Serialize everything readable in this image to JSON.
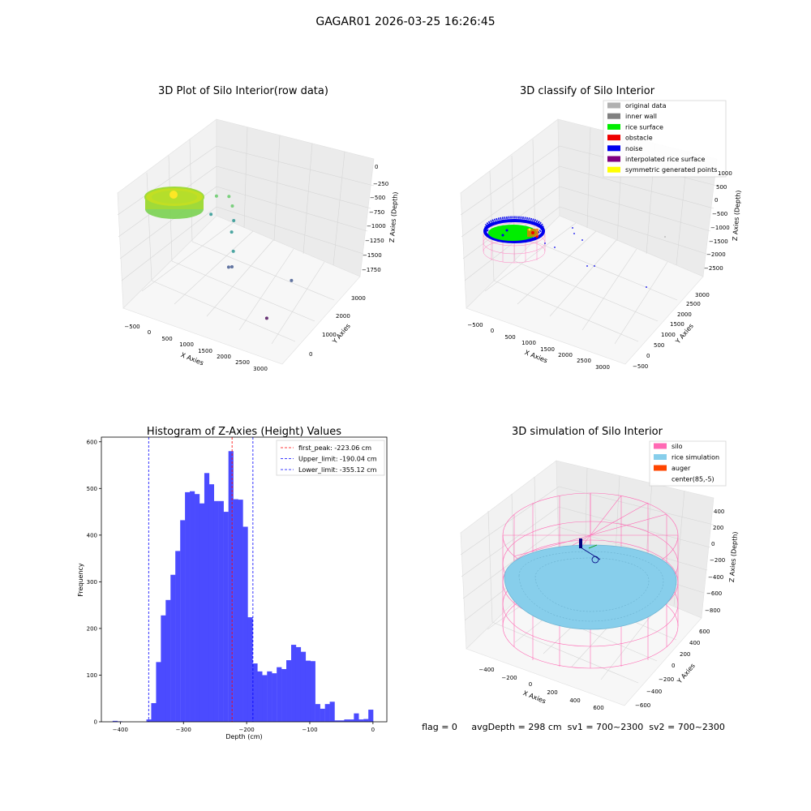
{
  "suptitle": "GAGAR01 2026-03-25 16:26:45",
  "status_line": "flag = 0     avgDepth = 298 cm  sv1 = 700~2300  sv2 = 700~2300",
  "chart_data": [
    {
      "type": "scatter3d",
      "title": "3D Plot of Silo Interior(row data)",
      "xlabel": "X Axies",
      "ylabel": "Y Axies",
      "zlabel": "Z Axies (Depth)",
      "x_ticks": [
        "−500",
        "0",
        "500",
        "1000",
        "1500",
        "2000",
        "2500",
        "3000"
      ],
      "y_ticks": [
        "0",
        "1000",
        "2000",
        "3000"
      ],
      "z_ticks": [
        "0",
        "−250",
        "−500",
        "−750",
        "−1000",
        "−1250",
        "−1500",
        "−1750"
      ],
      "xlim": [
        -600,
        3200
      ],
      "ylim": [
        -600,
        3400
      ],
      "zlim": [
        -1900,
        100
      ],
      "colormap": "viridis",
      "points": [
        {
          "x": 250,
          "y": 2200,
          "z": -800
        },
        {
          "x": 500,
          "y": 2300,
          "z": -780
        },
        {
          "x": 700,
          "y": 2050,
          "z": -800
        },
        {
          "x": 400,
          "y": 1600,
          "z": -850
        },
        {
          "x": 900,
          "y": 1700,
          "z": -870
        },
        {
          "x": 950,
          "y": 1500,
          "z": -980
        },
        {
          "x": 1100,
          "y": 1300,
          "z": -1200
        },
        {
          "x": 1050,
          "y": 1200,
          "z": -1450
        },
        {
          "x": 1150,
          "y": 1150,
          "z": -1400
        },
        {
          "x": 2500,
          "y": 1300,
          "z": -1350
        },
        {
          "x": 2350,
          "y": 400,
          "z": -1700
        }
      ]
    },
    {
      "type": "scatter3d",
      "title": "3D classify of Silo Interior",
      "xlabel": "X Axies",
      "ylabel": "Y Axies",
      "zlabel": "Z Axies (Depth)",
      "x_ticks": [
        "−500",
        "0",
        "500",
        "1000",
        "1500",
        "2000",
        "2500",
        "3000"
      ],
      "y_ticks": [
        "−500",
        "0",
        "500",
        "1000",
        "1500",
        "2000",
        "2500",
        "3000"
      ],
      "z_ticks": [
        "1000",
        "500",
        "0",
        "−500",
        "−1000",
        "−1500",
        "−2000",
        "−2500"
      ],
      "legend": [
        {
          "label": "original data",
          "color": "#b0b0b0"
        },
        {
          "label": "inner wall",
          "color": "#808080"
        },
        {
          "label": "rice surface",
          "color": "#00ee00"
        },
        {
          "label": "obstacle",
          "color": "#ee0000"
        },
        {
          "label": "noise",
          "color": "#0000ee"
        },
        {
          "label": "interpolated rice surface",
          "color": "#800080"
        },
        {
          "label": "symmetric generated points",
          "color": "#ffff00"
        }
      ],
      "legend_loc": "upper right"
    },
    {
      "type": "bar",
      "title": "Histogram of Z-Axies (Height) Values",
      "xlabel": "Depth (cm)",
      "ylabel": "Frequency",
      "xlim": [
        -430,
        22
      ],
      "ylim": [
        0,
        610
      ],
      "x_ticks": [
        -400,
        -300,
        -200,
        -100,
        0
      ],
      "y_ticks": [
        0,
        100,
        200,
        300,
        400,
        500,
        600
      ],
      "bin_width": 7.64,
      "bar_color": "#4b4bff",
      "bins": [
        {
          "x": -412.2,
          "y": 2
        },
        {
          "x": -404.6,
          "y": 1
        },
        {
          "x": -358.7,
          "y": 5
        },
        {
          "x": -351.1,
          "y": 40
        },
        {
          "x": -343.4,
          "y": 128
        },
        {
          "x": -335.8,
          "y": 228
        },
        {
          "x": -328.2,
          "y": 261
        },
        {
          "x": -320.5,
          "y": 315
        },
        {
          "x": -312.9,
          "y": 366
        },
        {
          "x": -305.2,
          "y": 432
        },
        {
          "x": -297.6,
          "y": 492
        },
        {
          "x": -290.0,
          "y": 494
        },
        {
          "x": -282.3,
          "y": 488
        },
        {
          "x": -274.7,
          "y": 468
        },
        {
          "x": -267.0,
          "y": 533
        },
        {
          "x": -259.4,
          "y": 509
        },
        {
          "x": -251.8,
          "y": 473
        },
        {
          "x": -244.1,
          "y": 473
        },
        {
          "x": -236.5,
          "y": 450
        },
        {
          "x": -228.8,
          "y": 580
        },
        {
          "x": -221.2,
          "y": 477
        },
        {
          "x": -213.6,
          "y": 476
        },
        {
          "x": -205.9,
          "y": 418
        },
        {
          "x": -198.3,
          "y": 224
        },
        {
          "x": -190.6,
          "y": 125
        },
        {
          "x": -183.0,
          "y": 108
        },
        {
          "x": -175.4,
          "y": 100
        },
        {
          "x": -167.7,
          "y": 108
        },
        {
          "x": -160.1,
          "y": 104
        },
        {
          "x": -152.4,
          "y": 117
        },
        {
          "x": -144.8,
          "y": 113
        },
        {
          "x": -137.2,
          "y": 132
        },
        {
          "x": -129.5,
          "y": 165
        },
        {
          "x": -121.9,
          "y": 160
        },
        {
          "x": -114.2,
          "y": 150
        },
        {
          "x": -106.6,
          "y": 131
        },
        {
          "x": -99.0,
          "y": 130
        },
        {
          "x": -91.3,
          "y": 38
        },
        {
          "x": -83.7,
          "y": 28
        },
        {
          "x": -76.0,
          "y": 38
        },
        {
          "x": -68.4,
          "y": 43
        },
        {
          "x": -60.8,
          "y": 3
        },
        {
          "x": -53.1,
          "y": 3
        },
        {
          "x": -45.5,
          "y": 5
        },
        {
          "x": -37.8,
          "y": 5
        },
        {
          "x": -30.2,
          "y": 18
        },
        {
          "x": -22.6,
          "y": 5
        },
        {
          "x": -14.9,
          "y": 6
        },
        {
          "x": -7.3,
          "y": 26
        }
      ],
      "vlines": [
        {
          "label": "first_peak: -223.06 cm",
          "x": -223.06,
          "color": "#ff0000"
        },
        {
          "label": "Upper_limit: -190.04 cm",
          "x": -190.04,
          "color": "#0000ff"
        },
        {
          "label": "Lower_limit: -355.12 cm",
          "x": -355.12,
          "color": "#0000ff"
        }
      ],
      "legend_loc": "upper right"
    },
    {
      "type": "surface3d",
      "title": "3D simulation of Silo Interior",
      "xlabel": "X Axies",
      "ylabel": "Y Axies",
      "zlabel": "Z Axies (Depth)",
      "x_ticks": [
        "−400",
        "−200",
        "0",
        "200",
        "400",
        "600"
      ],
      "y_ticks": [
        "−600",
        "−400",
        "−200",
        "0",
        "200",
        "400",
        "600"
      ],
      "z_ticks": [
        "400",
        "200",
        "0",
        "−200",
        "−400",
        "−600",
        "−800"
      ],
      "legend": [
        {
          "label": "silo",
          "color": "#ff69b4"
        },
        {
          "label": "rice simulation",
          "color": "#87ceeb"
        },
        {
          "label": "auger",
          "color": "#ff4500"
        },
        {
          "label": "center(85,-5)",
          "color": "#ffffff"
        }
      ],
      "legend_loc": "upper right"
    }
  ]
}
